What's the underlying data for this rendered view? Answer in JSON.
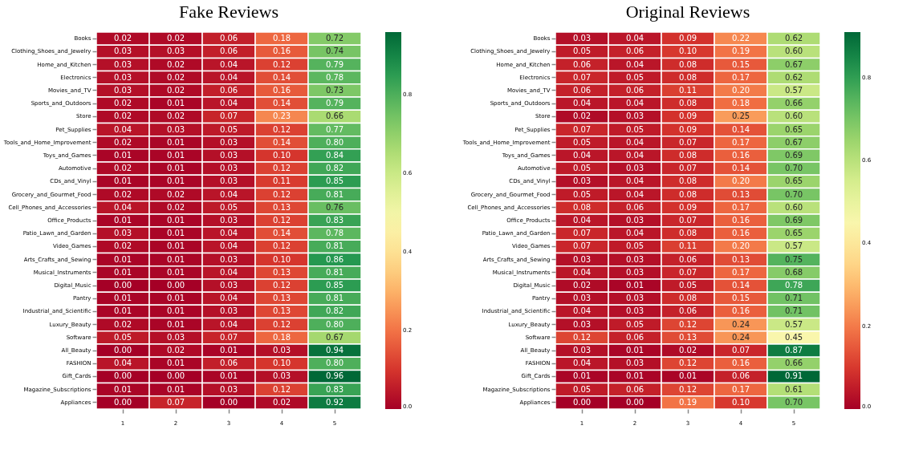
{
  "chart_data": [
    {
      "type": "heatmap",
      "title": "Fake Reviews",
      "categories": [
        "1",
        "2",
        "3",
        "4",
        "5"
      ],
      "y_categories": [
        "Books",
        "Clothing_Shoes_and_Jewelry",
        "Home_and_Kitchen",
        "Electronics",
        "Movies_and_TV",
        "Sports_and_Outdoors",
        "Store",
        "Pet_Supplies",
        "Tools_and_Home_Improvement",
        "Toys_and_Games",
        "Automotive",
        "CDs_and_Vinyl",
        "Grocery_and_Gourmet_Food",
        "Cell_Phones_and_Accessories",
        "Office_Products",
        "Patio_Lawn_and_Garden",
        "Video_Games",
        "Arts_Crafts_and_Sewing",
        "Musical_Instruments",
        "Digital_Music",
        "Pantry",
        "Industrial_and_Scientific",
        "Luxury_Beauty",
        "Software",
        "All_Beauty",
        "FASHION",
        "Gift_Cards",
        "Magazine_Subscriptions",
        "Appliances"
      ],
      "cells": [
        [
          0.02,
          0.02,
          0.06,
          0.18,
          0.72
        ],
        [
          0.03,
          0.03,
          0.06,
          0.16,
          0.74
        ],
        [
          0.03,
          0.02,
          0.04,
          0.12,
          0.79
        ],
        [
          0.03,
          0.02,
          0.04,
          0.14,
          0.78
        ],
        [
          0.03,
          0.02,
          0.06,
          0.16,
          0.73
        ],
        [
          0.02,
          0.01,
          0.04,
          0.14,
          0.79
        ],
        [
          0.02,
          0.02,
          0.07,
          0.23,
          0.66
        ],
        [
          0.04,
          0.03,
          0.05,
          0.12,
          0.77
        ],
        [
          0.02,
          0.01,
          0.03,
          0.14,
          0.8
        ],
        [
          0.01,
          0.01,
          0.03,
          0.1,
          0.84
        ],
        [
          0.02,
          0.01,
          0.03,
          0.12,
          0.82
        ],
        [
          0.01,
          0.01,
          0.03,
          0.11,
          0.85
        ],
        [
          0.02,
          0.02,
          0.04,
          0.12,
          0.81
        ],
        [
          0.04,
          0.02,
          0.05,
          0.13,
          0.76
        ],
        [
          0.01,
          0.01,
          0.03,
          0.12,
          0.83
        ],
        [
          0.03,
          0.01,
          0.04,
          0.14,
          0.78
        ],
        [
          0.02,
          0.01,
          0.04,
          0.12,
          0.81
        ],
        [
          0.01,
          0.01,
          0.03,
          0.1,
          0.86
        ],
        [
          0.01,
          0.01,
          0.04,
          0.13,
          0.81
        ],
        [
          0.0,
          0.0,
          0.03,
          0.12,
          0.85
        ],
        [
          0.01,
          0.01,
          0.04,
          0.13,
          0.81
        ],
        [
          0.01,
          0.01,
          0.03,
          0.13,
          0.82
        ],
        [
          0.02,
          0.01,
          0.04,
          0.12,
          0.8
        ],
        [
          0.05,
          0.03,
          0.07,
          0.18,
          0.67
        ],
        [
          0.0,
          0.02,
          0.01,
          0.03,
          0.94
        ],
        [
          0.04,
          0.01,
          0.06,
          0.1,
          0.8
        ],
        [
          0.0,
          0.0,
          0.01,
          0.03,
          0.96
        ],
        [
          0.01,
          0.01,
          0.03,
          0.12,
          0.83
        ],
        [
          0.0,
          0.07,
          0.0,
          0.02,
          0.92
        ]
      ],
      "cell_labels": [
        [
          "0.02",
          "0.02",
          "0.06",
          "0.18",
          "0.72"
        ],
        [
          "0.03",
          "0.03",
          "0.06",
          "0.16",
          "0.74"
        ],
        [
          "0.03",
          "0.02",
          "0.04",
          "0.12",
          "0.79"
        ],
        [
          "0.03",
          "0.02",
          "0.04",
          "0.14",
          "0.78"
        ],
        [
          "0.03",
          "0.02",
          "0.06",
          "0.16",
          "0.73"
        ],
        [
          "0.02",
          "0.01",
          "0.04",
          "0.14",
          "0.79"
        ],
        [
          "0.02",
          "0.02",
          "0.07",
          "0.23",
          "0.66"
        ],
        [
          "0.04",
          "0.03",
          "0.05",
          "0.12",
          "0.77"
        ],
        [
          "0.02",
          "0.01",
          "0.03",
          "0.14",
          "0.80"
        ],
        [
          "0.01",
          "0.01",
          "0.03",
          "0.10",
          "0.84"
        ],
        [
          "0.02",
          "0.01",
          "0.03",
          "0.12",
          "0.82"
        ],
        [
          "0.01",
          "0.01",
          "0.03",
          "0.11",
          "0.85"
        ],
        [
          "0.02",
          "0.02",
          "0.04",
          "0.12",
          "0.81"
        ],
        [
          "0.04",
          "0.02",
          "0.05",
          "0.13",
          "0.76"
        ],
        [
          "0.01",
          "0.01",
          "0.03",
          "0.12",
          "0.83"
        ],
        [
          "0.03",
          "0.01",
          "0.04",
          "0.14",
          "0.78"
        ],
        [
          "0.02",
          "0.01",
          "0.04",
          "0.12",
          "0.81"
        ],
        [
          "0.01",
          "0.01",
          "0.03",
          "0.10",
          "0.86"
        ],
        [
          "0.01",
          "0.01",
          "0.04",
          "0.13",
          "0.81"
        ],
        [
          "0.00",
          "0.00",
          "0.03",
          "0.12",
          "0.85"
        ],
        [
          "0.01",
          "0.01",
          "0.04",
          "0.13",
          "0.81"
        ],
        [
          "0.01",
          "0.01",
          "0.03",
          "0.13",
          "0.82"
        ],
        [
          "0.02",
          "0.01",
          "0.04",
          "0.12",
          "0.80"
        ],
        [
          "0.05",
          "0.03",
          "0.07",
          "0.18",
          "0.67"
        ],
        [
          "0.00",
          "0.02",
          "0.01",
          "0.03",
          "0.94"
        ],
        [
          "0.04",
          "0.01",
          "0.06",
          "0.10",
          "0.80"
        ],
        [
          "0.00",
          "0.00",
          "0.01",
          "0.03",
          "0.96"
        ],
        [
          "0.01",
          "0.01",
          "0.03",
          "0.12",
          "0.83"
        ],
        [
          "0.00",
          "0.07",
          "0.00",
          "0.02",
          "0.92"
        ]
      ],
      "clim": [
        0,
        0.96
      ],
      "cticks": [
        {
          "value": 0,
          "label": "0.0"
        },
        0.2,
        0.4,
        0.6,
        0.8
      ],
      "data_labels": true
    },
    {
      "type": "heatmap",
      "title": "Original Reviews",
      "categories": [
        "1",
        "2",
        "3",
        "4",
        "5"
      ],
      "y_categories": [
        "Books",
        "Clothing_Shoes_and_Jewelry",
        "Home_and_Kitchen",
        "Electronics",
        "Movies_and_TV",
        "Sports_and_Outdoors",
        "Store",
        "Pet_Supplies",
        "Tools_and_Home_Improvement",
        "Toys_and_Games",
        "Automotive",
        "CDs_and_Vinyl",
        "Grocery_and_Gourmet_Food",
        "Cell_Phones_and_Accessories",
        "Office_Products",
        "Patio_Lawn_and_Garden",
        "Video_Games",
        "Arts_Crafts_and_Sewing",
        "Musical_Instruments",
        "Digital_Music",
        "Pantry",
        "Industrial_and_Scientific",
        "Luxury_Beauty",
        "Software",
        "All_Beauty",
        "FASHION",
        "Gift_Cards",
        "Magazine_Subscriptions",
        "Appliances"
      ],
      "cells": [
        [
          0.03,
          0.04,
          0.09,
          0.22,
          0.62
        ],
        [
          0.05,
          0.06,
          0.1,
          0.19,
          0.6
        ],
        [
          0.06,
          0.04,
          0.08,
          0.15,
          0.67
        ],
        [
          0.07,
          0.05,
          0.08,
          0.17,
          0.62
        ],
        [
          0.06,
          0.06,
          0.11,
          0.2,
          0.57
        ],
        [
          0.04,
          0.04,
          0.08,
          0.18,
          0.66
        ],
        [
          0.02,
          0.03,
          0.09,
          0.25,
          0.6
        ],
        [
          0.07,
          0.05,
          0.09,
          0.14,
          0.65
        ],
        [
          0.05,
          0.04,
          0.07,
          0.17,
          0.67
        ],
        [
          0.04,
          0.04,
          0.08,
          0.16,
          0.69
        ],
        [
          0.05,
          0.03,
          0.07,
          0.14,
          0.7
        ],
        [
          0.03,
          0.04,
          0.08,
          0.2,
          0.65
        ],
        [
          0.05,
          0.04,
          0.08,
          0.13,
          0.7
        ],
        [
          0.08,
          0.06,
          0.09,
          0.17,
          0.6
        ],
        [
          0.04,
          0.03,
          0.07,
          0.16,
          0.69
        ],
        [
          0.07,
          0.04,
          0.08,
          0.16,
          0.65
        ],
        [
          0.07,
          0.05,
          0.11,
          0.2,
          0.57
        ],
        [
          0.03,
          0.03,
          0.06,
          0.13,
          0.75
        ],
        [
          0.04,
          0.03,
          0.07,
          0.17,
          0.68
        ],
        [
          0.02,
          0.01,
          0.05,
          0.14,
          0.78
        ],
        [
          0.03,
          0.03,
          0.08,
          0.15,
          0.71
        ],
        [
          0.04,
          0.03,
          0.06,
          0.16,
          0.71
        ],
        [
          0.03,
          0.05,
          0.12,
          0.24,
          0.57
        ],
        [
          0.12,
          0.06,
          0.13,
          0.24,
          0.45
        ],
        [
          0.03,
          0.01,
          0.02,
          0.07,
          0.87
        ],
        [
          0.04,
          0.03,
          0.12,
          0.16,
          0.66
        ],
        [
          0.01,
          0.01,
          0.01,
          0.06,
          0.91
        ],
        [
          0.05,
          0.06,
          0.12,
          0.17,
          0.61
        ],
        [
          0.0,
          0.0,
          0.19,
          0.1,
          0.7
        ]
      ],
      "cell_labels": [
        [
          "0.03",
          "0.04",
          "0.09",
          "0.22",
          "0.62"
        ],
        [
          "0.05",
          "0.06",
          "0.10",
          "0.19",
          "0.60"
        ],
        [
          "0.06",
          "0.04",
          "0.08",
          "0.15",
          "0.67"
        ],
        [
          "0.07",
          "0.05",
          "0.08",
          "0.17",
          "0.62"
        ],
        [
          "0.06",
          "0.06",
          "0.11",
          "0.20",
          "0.57"
        ],
        [
          "0.04",
          "0.04",
          "0.08",
          "0.18",
          "0.66"
        ],
        [
          "0.02",
          "0.03",
          "0.09",
          "0.25",
          "0.60"
        ],
        [
          "0.07",
          "0.05",
          "0.09",
          "0.14",
          "0.65"
        ],
        [
          "0.05",
          "0.04",
          "0.07",
          "0.17",
          "0.67"
        ],
        [
          "0.04",
          "0.04",
          "0.08",
          "0.16",
          "0.69"
        ],
        [
          "0.05",
          "0.03",
          "0.07",
          "0.14",
          "0.70"
        ],
        [
          "0.03",
          "0.04",
          "0.08",
          "0.20",
          "0.65"
        ],
        [
          "0.05",
          "0.04",
          "0.08",
          "0.13",
          "0.70"
        ],
        [
          "0.08",
          "0.06",
          "0.09",
          "0.17",
          "0.60"
        ],
        [
          "0.04",
          "0.03",
          "0.07",
          "0.16",
          "0.69"
        ],
        [
          "0.07",
          "0.04",
          "0.08",
          "0.16",
          "0.65"
        ],
        [
          "0.07",
          "0.05",
          "0.11",
          "0.20",
          "0.57"
        ],
        [
          "0.03",
          "0.03",
          "0.06",
          "0.13",
          "0.75"
        ],
        [
          "0.04",
          "0.03",
          "0.07",
          "0.17",
          "0.68"
        ],
        [
          "0.02",
          "0.01",
          "0.05",
          "0.14",
          "0.78"
        ],
        [
          "0.03",
          "0.03",
          "0.08",
          "0.15",
          "0.71"
        ],
        [
          "0.04",
          "0.03",
          "0.06",
          "0.16",
          "0.71"
        ],
        [
          "0.03",
          "0.05",
          "0.12",
          "0.24",
          "0.57"
        ],
        [
          "0.12",
          "0.06",
          "0.13",
          "0.24",
          "0.45"
        ],
        [
          "0.03",
          "0.01",
          "0.02",
          "0.07",
          "0.87"
        ],
        [
          "0.04",
          "0.03",
          "0.12",
          "0.16",
          "0.66"
        ],
        [
          "0.01",
          "0.01",
          "0.01",
          "0.06",
          "0.91"
        ],
        [
          "0.05",
          "0.06",
          "0.12",
          "0.17",
          "0.61"
        ],
        [
          "0.00",
          "0.00",
          "0.19",
          "0.10",
          "0.70"
        ]
      ],
      "clim": [
        0,
        0.91
      ],
      "cticks": [
        {
          "value": 0,
          "label": "0.0"
        },
        0.2,
        0.4,
        0.6,
        0.8
      ],
      "data_labels": true
    }
  ]
}
